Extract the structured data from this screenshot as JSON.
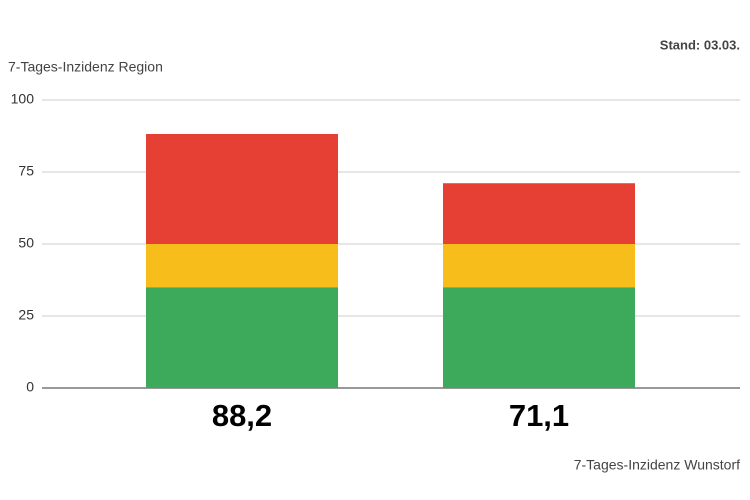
{
  "chart_data": {
    "type": "stacked_bar",
    "subtitle": "Stand: 03.03.",
    "y_label": "7-Tages-Inzidenz Region",
    "x_label": "7-Tages-Inzidenz Wunstorf",
    "categories": [
      "88,2",
      "71,1"
    ],
    "series": [
      {
        "color": "#3caa5a",
        "values": [
          35,
          35
        ]
      },
      {
        "color": "#f7bd1b",
        "values": [
          15,
          15
        ]
      },
      {
        "color": "#e63f33",
        "values": [
          38.2,
          21.1
        ]
      }
    ],
    "ylim": [
      0,
      100
    ],
    "yticks": [
      0,
      25,
      50,
      75,
      100
    ],
    "grid": true
  }
}
